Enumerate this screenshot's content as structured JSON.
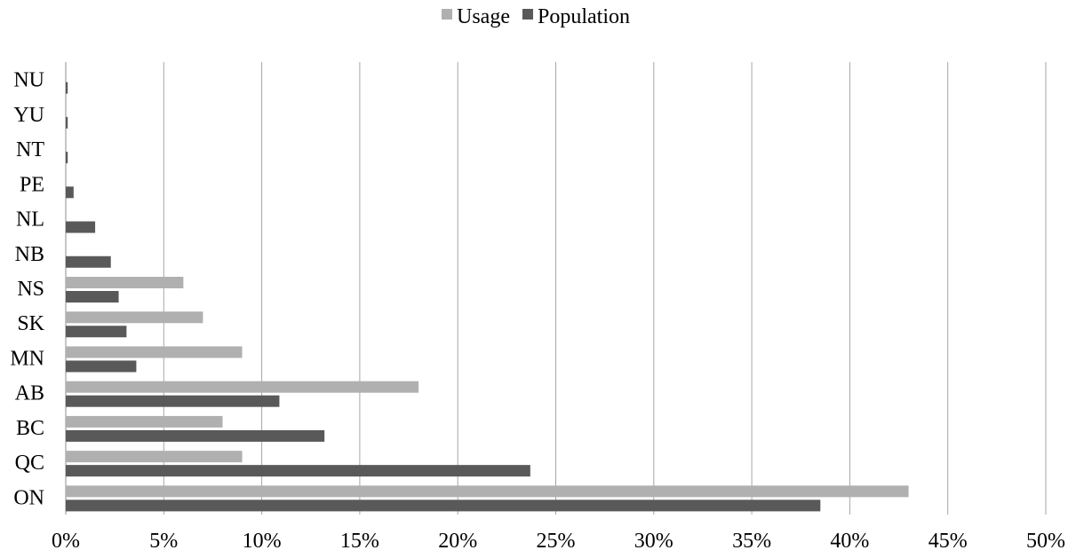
{
  "chart_data": {
    "type": "bar",
    "orientation": "horizontal",
    "categories": [
      "ON",
      "QC",
      "BC",
      "AB",
      "MN",
      "SK",
      "NS",
      "NB",
      "NL",
      "PE",
      "NT",
      "YU",
      "NU"
    ],
    "series": [
      {
        "name": "Usage",
        "color": "#b0b0b0",
        "values": [
          43.0,
          9.0,
          8.0,
          18.0,
          9.0,
          7.0,
          6.0,
          0.0,
          0.0,
          0.0,
          0.0,
          0.0,
          0.0
        ]
      },
      {
        "name": "Population",
        "color": "#595959",
        "values": [
          38.5,
          23.7,
          13.2,
          10.9,
          3.6,
          3.1,
          2.7,
          2.3,
          1.5,
          0.4,
          0.1,
          0.1,
          0.1
        ]
      }
    ],
    "xlim": [
      0,
      50
    ],
    "xticks": [
      0,
      5,
      10,
      15,
      20,
      25,
      30,
      35,
      40,
      45,
      50
    ],
    "xtick_labels": [
      "0%",
      "5%",
      "10%",
      "15%",
      "20%",
      "25%",
      "30%",
      "35%",
      "40%",
      "45%",
      "50%"
    ],
    "grid": "vertical",
    "legend_position": "top-center",
    "title": "",
    "xlabel": "",
    "ylabel": ""
  }
}
